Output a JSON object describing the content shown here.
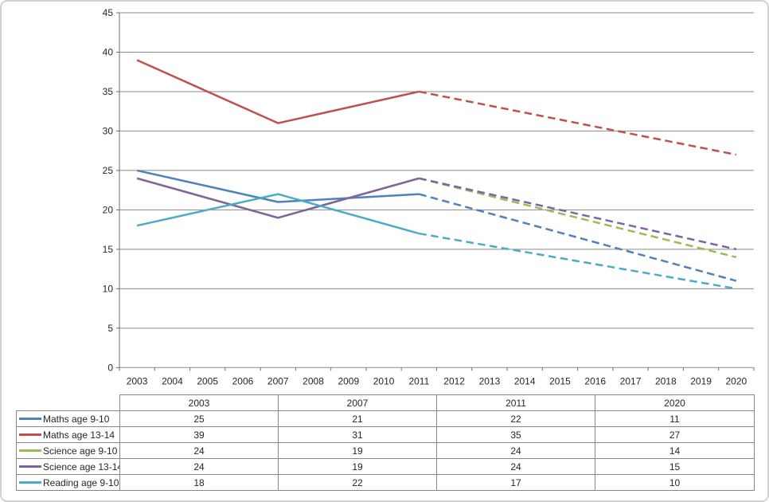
{
  "frame": {
    "background": "#ffffff",
    "border_color": "#d2d2d2"
  },
  "chart_data": {
    "type": "line",
    "title": "",
    "xlabel": "",
    "ylabel": "",
    "x_tick_labels": [
      "2003",
      "2004",
      "2005",
      "2006",
      "2007",
      "2008",
      "2009",
      "2010",
      "2011",
      "2012",
      "2013",
      "2014",
      "2015",
      "2016",
      "2017",
      "2018",
      "2019",
      "2020"
    ],
    "x_start": 2003,
    "y_ticks": [
      0,
      5,
      10,
      15,
      20,
      25,
      30,
      35,
      40,
      45
    ],
    "ylim": [
      0,
      45
    ],
    "grid": true,
    "legend_position": "table-below",
    "known_x": [
      2003,
      2007,
      2011,
      2020
    ],
    "solid_point_count": 3,
    "projection_note": "solid lines 2003-2011, dashed projection 2011-2020",
    "dash_pattern": "9.5 5.5",
    "line_width": 2.5,
    "grid_color": "#8a8a8a",
    "axis_color": "#6f6f6f",
    "text_color": "#262626",
    "series": [
      {
        "name": "Maths age 9-10",
        "color": "#4F81BD",
        "values": [
          25,
          21,
          22,
          11
        ]
      },
      {
        "name": "Maths age 13-14",
        "color": "#C0504D",
        "values": [
          39,
          31,
          35,
          27
        ]
      },
      {
        "name": "Science age 9-10",
        "color": "#9BBB59",
        "values": [
          24,
          19,
          24,
          14
        ]
      },
      {
        "name": "Science age 13-14",
        "color": "#8064A2",
        "values": [
          24,
          19,
          24,
          15
        ]
      },
      {
        "name": "Reading age 9-10",
        "color": "#4BACC6",
        "values": [
          18,
          22,
          17,
          10
        ]
      }
    ]
  },
  "table": {
    "column_headers": [
      "2003",
      "2007",
      "2011",
      "2020"
    ],
    "rows": [
      {
        "label": "Maths age 9-10",
        "color": "#4F81BD",
        "values": [
          "25",
          "21",
          "22",
          "11"
        ]
      },
      {
        "label": "Maths age 13-14",
        "color": "#C0504D",
        "values": [
          "39",
          "31",
          "35",
          "27"
        ]
      },
      {
        "label": "Science age 9-10",
        "color": "#9BBB59",
        "values": [
          "24",
          "19",
          "24",
          "14"
        ]
      },
      {
        "label": "Science age 13-14",
        "color": "#8064A2",
        "values": [
          "24",
          "19",
          "24",
          "15"
        ]
      },
      {
        "label": "Reading age 9-10",
        "color": "#4BACC6",
        "values": [
          "18",
          "22",
          "17",
          "10"
        ]
      }
    ]
  }
}
